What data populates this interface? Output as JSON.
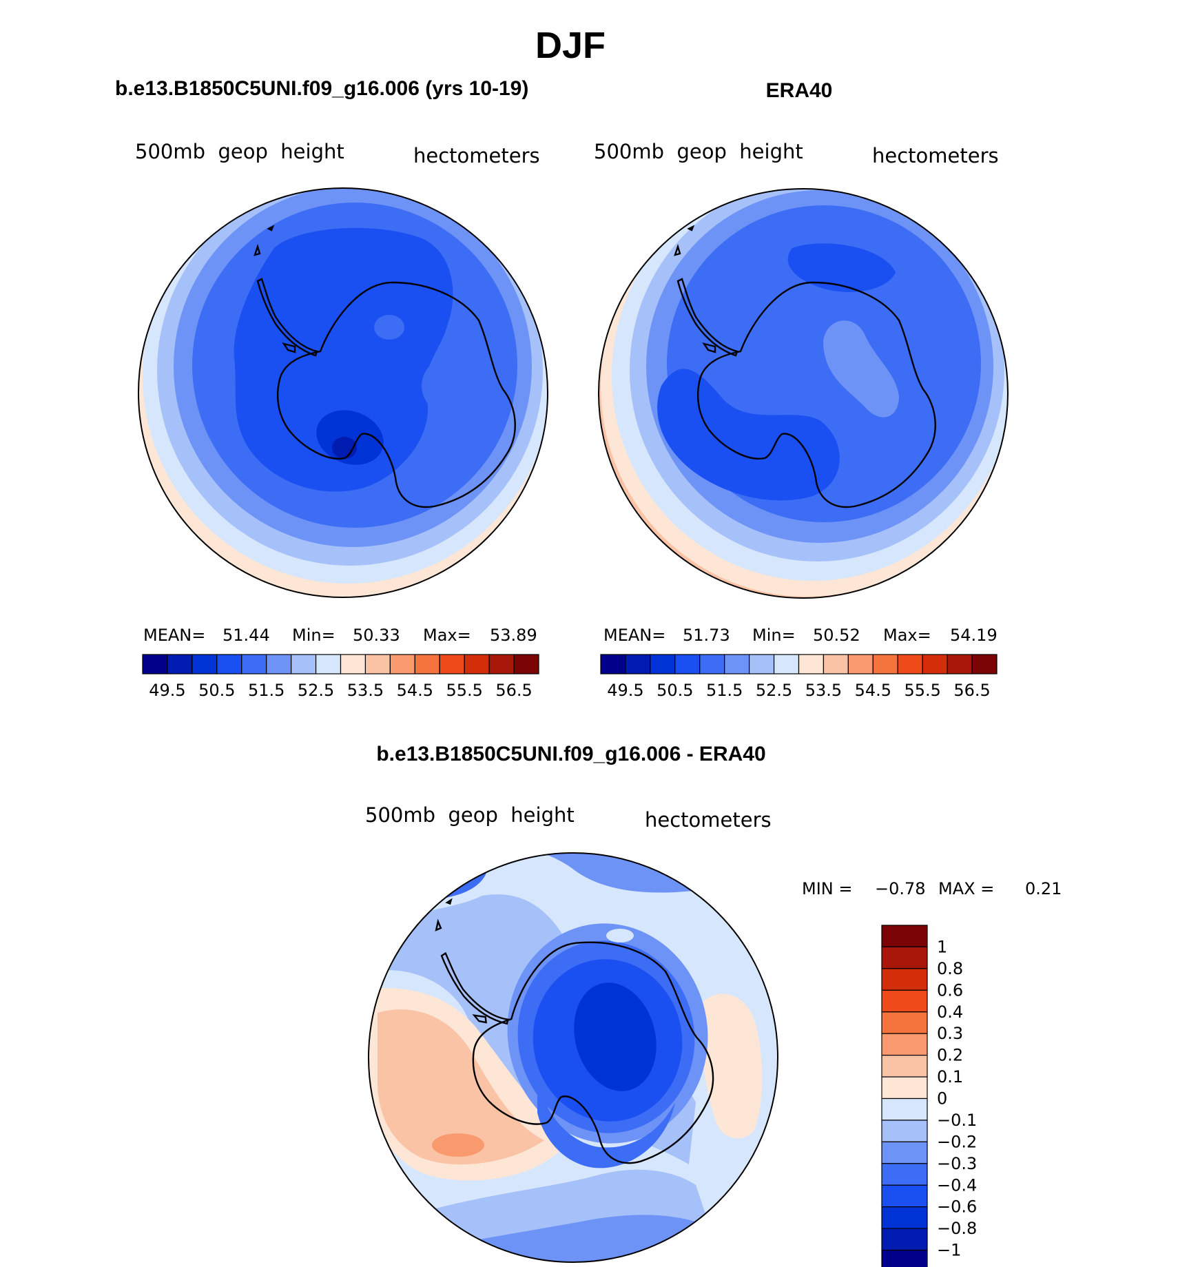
{
  "figure": {
    "title": "DJF"
  },
  "chart_data": [
    {
      "type": "heatmap",
      "projection": "south-polar-stereographic",
      "title": "b.e13.B1850C5UNI.f09_g16.006 (yrs 10-19)",
      "left_label": "500mb  geop  height",
      "right_label": "hectometers",
      "stats": {
        "mean_label": "MEAN=",
        "mean": "51.44",
        "min_label": "Min=",
        "min": "50.33",
        "max_label": "Max=",
        "max": "53.89"
      },
      "colorbar_labels": [
        "49.5",
        "50.5",
        "51.5",
        "52.5",
        "53.5",
        "54.5",
        "55.5",
        "56.5"
      ],
      "levels": [
        49.5,
        50.0,
        50.5,
        51.0,
        51.5,
        52.0,
        52.5,
        53.0,
        53.5,
        54.0,
        54.5,
        55.0,
        55.5,
        56.0,
        56.5
      ],
      "colors": [
        "#00008a",
        "#001bb0",
        "#0033d6",
        "#1a4ff2",
        "#3d6df5",
        "#6e93f7",
        "#a6c0fa",
        "#d6e6fc",
        "#fde6d6",
        "#fbc3a6",
        "#f89a6e",
        "#f5743d",
        "#ee4a1a",
        "#d22e0a",
        "#a8180a",
        "#7a0303"
      ]
    },
    {
      "type": "heatmap",
      "projection": "south-polar-stereographic",
      "title": "ERA40",
      "left_label": "500mb  geop  height",
      "right_label": "hectometers",
      "stats": {
        "mean_label": "MEAN=",
        "mean": "51.73",
        "min_label": "Min=",
        "min": "50.52",
        "max_label": "Max=",
        "max": "54.19"
      },
      "colorbar_labels": [
        "49.5",
        "50.5",
        "51.5",
        "52.5",
        "53.5",
        "54.5",
        "55.5",
        "56.5"
      ],
      "levels": [
        49.5,
        50.0,
        50.5,
        51.0,
        51.5,
        52.0,
        52.5,
        53.0,
        53.5,
        54.0,
        54.5,
        55.0,
        55.5,
        56.0,
        56.5
      ],
      "colors": [
        "#00008a",
        "#001bb0",
        "#0033d6",
        "#1a4ff2",
        "#3d6df5",
        "#6e93f7",
        "#a6c0fa",
        "#d6e6fc",
        "#fde6d6",
        "#fbc3a6",
        "#f89a6e",
        "#f5743d",
        "#ee4a1a",
        "#d22e0a",
        "#a8180a",
        "#7a0303"
      ]
    },
    {
      "type": "heatmap",
      "projection": "south-polar-stereographic",
      "title": "b.e13.B1850C5UNI.f09_g16.006 - ERA40",
      "left_label": "500mb  geop  height",
      "right_label": "hectometers",
      "stats": {
        "min_label": "MIN =",
        "min": "−0.78",
        "max_label": "MAX =",
        "max": "0.21"
      },
      "colorbar_labels": [
        "1",
        "0.8",
        "0.6",
        "0.4",
        "0.3",
        "0.2",
        "0.1",
        "0",
        "−0.1",
        "−0.2",
        "−0.3",
        "−0.4",
        "−0.6",
        "−0.8",
        "−1"
      ],
      "levels": [
        -1,
        -0.8,
        -0.6,
        -0.4,
        -0.3,
        -0.2,
        -0.1,
        0,
        0.1,
        0.2,
        0.3,
        0.4,
        0.6,
        0.8,
        1
      ],
      "colors": [
        "#7a0303",
        "#a8180a",
        "#d22e0a",
        "#ee4a1a",
        "#f5743d",
        "#f89a6e",
        "#fbc3a6",
        "#fde6d6",
        "#d6e6fc",
        "#a6c0fa",
        "#6e93f7",
        "#3d6df5",
        "#1a4ff2",
        "#0033d6",
        "#001bb0",
        "#00008a"
      ]
    }
  ]
}
